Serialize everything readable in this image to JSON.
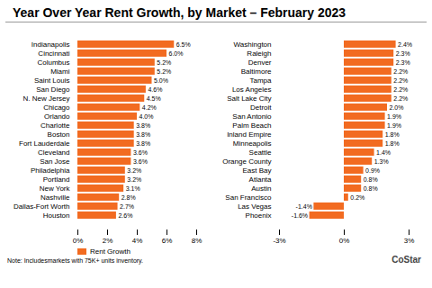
{
  "chart_data": [
    {
      "type": "bar",
      "orientation": "horizontal",
      "data_labels": true,
      "legend": "bottom",
      "title": "Year Over Year Rent Growth, by Market – February 2023",
      "categories": [
        "Indianapolis",
        "Cincinnati",
        "Columbus",
        "Miami",
        "Saint Louis",
        "San Diego",
        "N. New Jersey",
        "Chicago",
        "Orlando",
        "Charlotte",
        "Boston",
        "Fort Lauderdale",
        "Cleveland",
        "San Jose",
        "Philadelphia",
        "Portland",
        "New York",
        "Nashville",
        "Dallas-Fort Worth",
        "Houston"
      ],
      "series": [
        {
          "name": "Rent Growth",
          "color": "#f26b21",
          "values": [
            6.5,
            6.0,
            5.2,
            5.2,
            5.0,
            4.6,
            4.5,
            4.2,
            4.0,
            3.8,
            3.8,
            3.8,
            3.6,
            3.6,
            3.2,
            3.2,
            3.1,
            2.8,
            2.7,
            2.6
          ],
          "value_labels": [
            "6.5%",
            "6.0%",
            "5.2%",
            "5.2%",
            "5.0%",
            "4.6%",
            "4.5%",
            "4.2%",
            "4.0%",
            "3.8%",
            "3.8%",
            "3.8%",
            "3.6%",
            "3.6%",
            "3.2%",
            "3.2%",
            "3.1%",
            "2.8%",
            "2.7%",
            "2.6%"
          ]
        }
      ],
      "xlim": [
        0,
        8
      ],
      "xticks": [
        {
          "value": 0,
          "label": "0%"
        },
        {
          "value": 2,
          "label": "2%"
        },
        {
          "value": 4,
          "label": "4%"
        },
        {
          "value": 6,
          "label": "6%"
        },
        {
          "value": 8,
          "label": "8%"
        }
      ],
      "annotations": [
        "Note: Includesmarkets with 75K+ units inventory."
      ]
    },
    {
      "type": "bar",
      "orientation": "horizontal",
      "data_labels": true,
      "color": "#f26b21",
      "categories": [
        "Washington",
        "Raleigh",
        "Denver",
        "Baltimore",
        "Tampa",
        "Los Angeles",
        "Salt Lake City",
        "Detroit",
        "San Antonio",
        "Palm Beach",
        "Inland Empire",
        "Minneapolis",
        "Seattle",
        "Orange County",
        "East Bay",
        "Atlanta",
        "Austin",
        "San Francisco",
        "Las Vegas",
        "Phoenix"
      ],
      "values": [
        2.4,
        2.3,
        2.3,
        2.2,
        2.2,
        2.2,
        2.2,
        2.0,
        1.9,
        1.9,
        1.8,
        1.8,
        1.4,
        1.3,
        0.9,
        0.8,
        0.8,
        0.2,
        -1.4,
        -1.6
      ],
      "value_labels": [
        "2.4%",
        "2.3%",
        "2.3%",
        "2.2%",
        "2.2%",
        "2.2%",
        "2.2%",
        "2.0%",
        "1.9%",
        "1.9%",
        "1.8%",
        "1.8%",
        "1.4%",
        "1.3%",
        "0.9%",
        "0.8%",
        "0.8%",
        "0.2%",
        "-1.4%",
        "-1.6%"
      ],
      "xlim": [
        -3,
        3
      ],
      "xticks": [
        {
          "value": -3,
          "label": "-3%"
        },
        {
          "value": 0,
          "label": "0%"
        },
        {
          "value": 3,
          "label": "3%"
        }
      ],
      "annotations": [
        "CoStar"
      ]
    }
  ]
}
